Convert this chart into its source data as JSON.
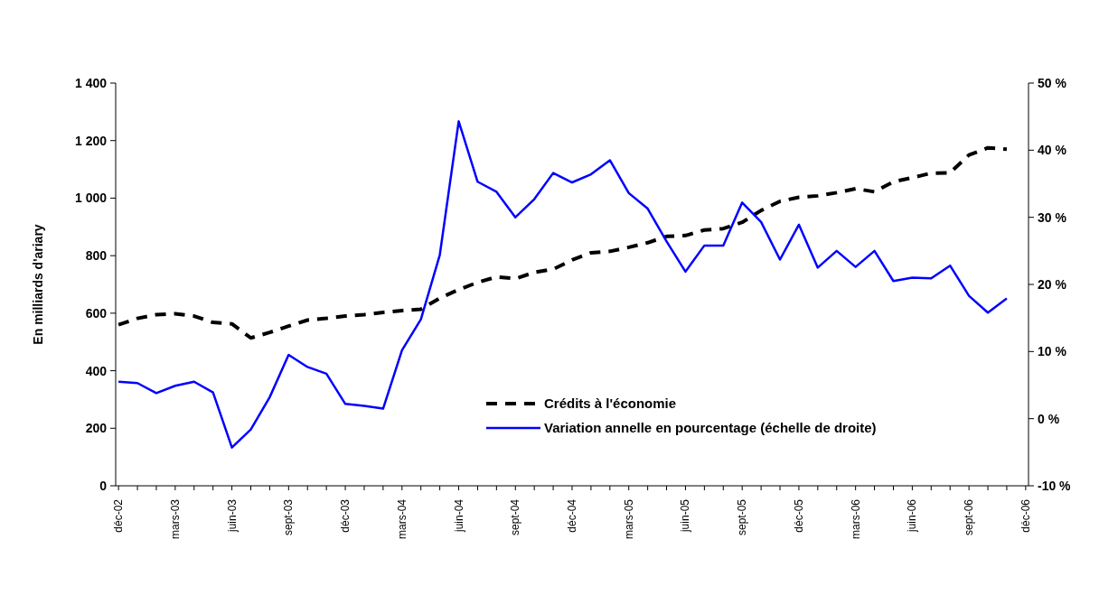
{
  "chart_data": {
    "type": "line",
    "ylabel": "En milliards d'ariary",
    "categories": [
      "déc-02",
      null,
      null,
      "mars-03",
      null,
      null,
      "juin-03",
      null,
      null,
      "sept-03",
      null,
      null,
      "déc-03",
      null,
      null,
      "mars-04",
      null,
      null,
      "juin-04",
      null,
      null,
      "sept-04",
      null,
      null,
      "déc-04",
      null,
      null,
      "mars-05",
      null,
      null,
      "juin-05",
      null,
      null,
      "sept-05",
      null,
      null,
      "déc-05",
      null,
      null,
      "mars-06",
      null,
      null,
      "juin-06",
      null,
      null,
      "sept-06",
      null,
      null,
      "déc-06"
    ],
    "series": [
      {
        "name": "Crédits à l'économie",
        "color": "#000000",
        "line_style": "dashed",
        "values": [
          560,
          582,
          595,
          598,
          590,
          568,
          563,
          514,
          533,
          555,
          576,
          582,
          590,
          595,
          603,
          609,
          614,
          652,
          682,
          707,
          726,
          720,
          742,
          753,
          785,
          810,
          815,
          829,
          845,
          867,
          870,
          889,
          894,
          916,
          957,
          989,
          1003,
          1008,
          1019,
          1033,
          1022,
          1057,
          1071,
          1087,
          1088,
          1150,
          1175,
          1170,
          null
        ]
      },
      {
        "name": "Variation annelle en pourcentage (échelle de droite)",
        "color": "#0000ff",
        "line_style": "solid",
        "axis": "y2",
        "values": [
          5.5,
          5.3,
          3.8,
          4.9,
          5.5,
          3.9,
          -4.3,
          -1.6,
          3.2,
          9.5,
          7.7,
          6.7,
          2.2,
          1.9,
          1.5,
          10.2,
          14.8,
          24.4,
          44.3,
          35.3,
          33.8,
          30.0,
          32.7,
          36.6,
          35.2,
          36.4,
          38.5,
          33.6,
          31.3,
          26.4,
          21.9,
          25.8,
          25.8,
          32.2,
          29.3,
          23.7,
          28.9,
          22.5,
          25.0,
          22.6,
          25.0,
          20.5,
          21.0,
          20.9,
          22.8,
          18.3,
          15.8,
          17.9,
          null
        ]
      }
    ],
    "ylim": [
      0,
      1400
    ],
    "yticks": [
      0,
      200,
      400,
      600,
      800,
      {
        "value": 1000,
        "label": "1 000"
      },
      {
        "value": 1200,
        "label": "1 200"
      },
      {
        "value": 1400,
        "label": "1 400"
      }
    ],
    "y2lim": [
      -10,
      50
    ],
    "y2ticks": [
      {
        "value": -10,
        "label": "-10 %"
      },
      {
        "value": 0,
        "label": "0 %"
      },
      {
        "value": 10,
        "label": "10 %"
      },
      {
        "value": 20,
        "label": "20 %"
      },
      {
        "value": 30,
        "label": "30 %"
      },
      {
        "value": 40,
        "label": "40 %"
      },
      {
        "value": 50,
        "label": "50 %"
      }
    ],
    "grid": false,
    "legend": "bottom",
    "marker": "none"
  }
}
